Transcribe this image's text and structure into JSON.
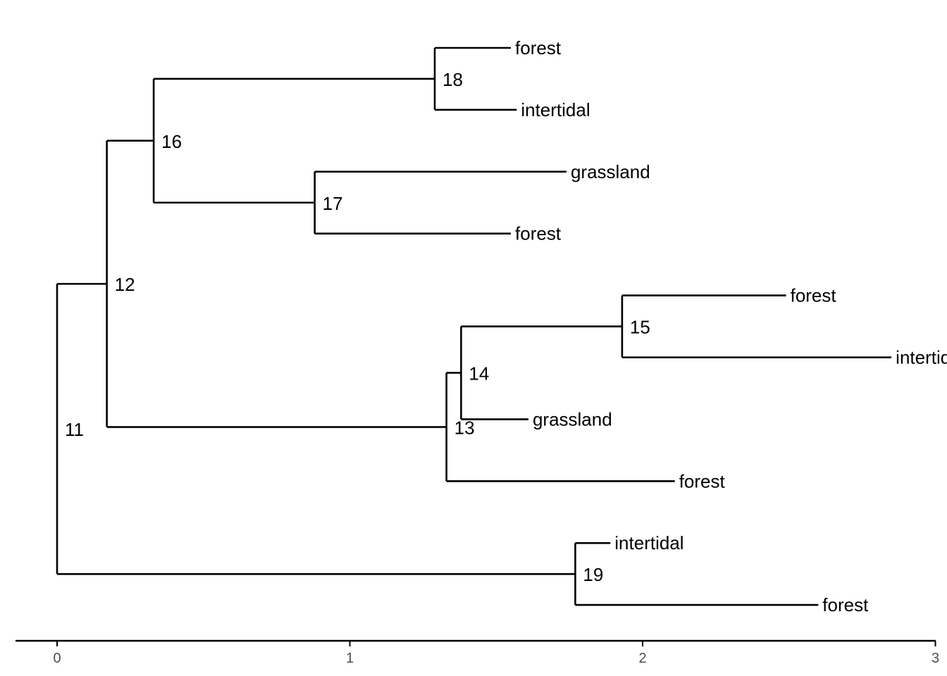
{
  "tree": {
    "tips": [
      {
        "id": "t1",
        "label": "forest",
        "parent": "18",
        "x": 1.55
      },
      {
        "id": "t2",
        "label": "intertidal",
        "parent": "18",
        "x": 1.57
      },
      {
        "id": "t3",
        "label": "grassland",
        "parent": "17",
        "x": 1.74
      },
      {
        "id": "t4",
        "label": "forest",
        "parent": "17",
        "x": 1.55
      },
      {
        "id": "t5",
        "label": "forest",
        "parent": "15",
        "x": 2.49
      },
      {
        "id": "t6",
        "label": "intertidal",
        "parent": "15",
        "x": 2.85
      },
      {
        "id": "t7",
        "label": "grassland",
        "parent": "14",
        "x": 1.61
      },
      {
        "id": "t8",
        "label": "forest",
        "parent": "13",
        "x": 2.11
      },
      {
        "id": "t9",
        "label": "intertidal",
        "parent": "19",
        "x": 1.89
      },
      {
        "id": "t10",
        "label": "forest",
        "parent": "19",
        "x": 2.6
      }
    ],
    "nodes": [
      {
        "id": "11",
        "label": "11",
        "parent": null,
        "x": 0.0
      },
      {
        "id": "12",
        "label": "12",
        "parent": "11",
        "x": 0.17
      },
      {
        "id": "16",
        "label": "16",
        "parent": "12",
        "x": 0.33
      },
      {
        "id": "18",
        "label": "18",
        "parent": "16",
        "x": 1.29
      },
      {
        "id": "17",
        "label": "17",
        "parent": "16",
        "x": 0.88
      },
      {
        "id": "13",
        "label": "13",
        "parent": "12",
        "x": 1.33
      },
      {
        "id": "14",
        "label": "14",
        "parent": "13",
        "x": 1.38
      },
      {
        "id": "15",
        "label": "15",
        "parent": "14",
        "x": 1.93
      },
      {
        "id": "19",
        "label": "19",
        "parent": "11",
        "x": 1.77
      }
    ]
  },
  "axis": {
    "ticks": [
      0,
      1,
      2,
      3
    ],
    "tick_labels": [
      "0",
      "1",
      "2",
      "3"
    ],
    "xlim": [
      -0.14,
      3.0
    ]
  }
}
